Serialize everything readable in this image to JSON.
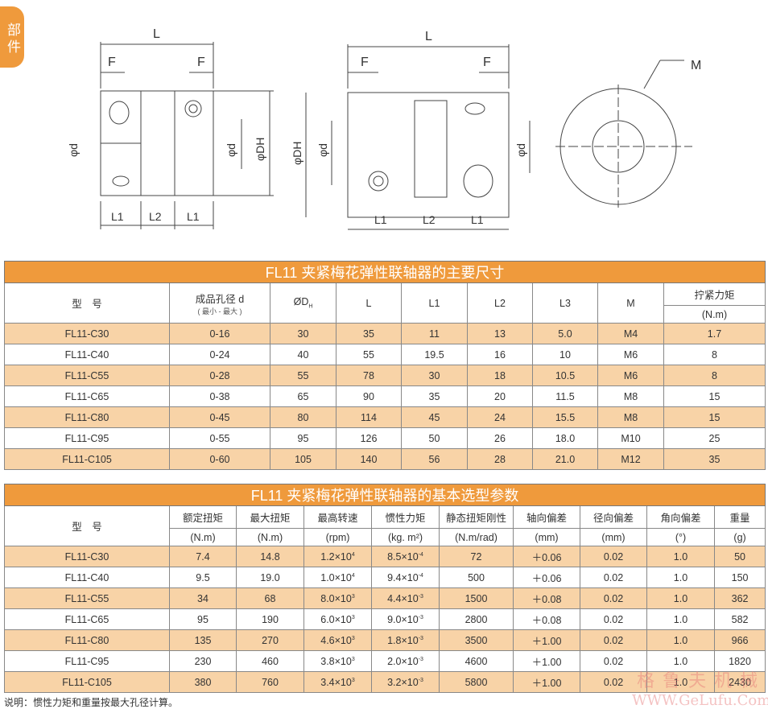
{
  "side_tab": "部件",
  "drawing": {
    "L": "L",
    "F": "F",
    "d": "φd",
    "DH": "φDH",
    "L1": "L1",
    "L2": "L2",
    "M": "M"
  },
  "table1": {
    "title": "FL11 夹紧梅花弹性联轴器的主要尺寸",
    "headers": [
      "型　号",
      "成品孔径 d",
      "ØD",
      "L",
      "L1",
      "L2",
      "L3",
      "M",
      "拧紧力矩"
    ],
    "sub_d": "( 最小 - 最大 )",
    "dh_sub": "H",
    "torque_unit": "(N.m)",
    "rows": [
      [
        "FL11-C30",
        "0-16",
        "30",
        "35",
        "11",
        "13",
        "5.0",
        "M4",
        "1.7"
      ],
      [
        "FL11-C40",
        "0-24",
        "40",
        "55",
        "19.5",
        "16",
        "10",
        "M6",
        "8"
      ],
      [
        "FL11-C55",
        "0-28",
        "55",
        "78",
        "30",
        "18",
        "10.5",
        "M6",
        "8"
      ],
      [
        "FL11-C65",
        "0-38",
        "65",
        "90",
        "35",
        "20",
        "11.5",
        "M8",
        "15"
      ],
      [
        "FL11-C80",
        "0-45",
        "80",
        "114",
        "45",
        "24",
        "15.5",
        "M8",
        "15"
      ],
      [
        "FL11-C95",
        "0-55",
        "95",
        "126",
        "50",
        "26",
        "18.0",
        "M10",
        "25"
      ],
      [
        "FL11-C105",
        "0-60",
        "105",
        "140",
        "56",
        "28",
        "21.0",
        "M12",
        "35"
      ]
    ]
  },
  "table2": {
    "title": "FL11 夹紧梅花弹性联轴器的基本选型参数",
    "headers": [
      "型　号",
      "额定扭矩",
      "最大扭矩",
      "最高转速",
      "惯性力矩",
      "静态扭矩刚性",
      "轴向偏差",
      "径向偏差",
      "角向偏差",
      "重量"
    ],
    "units": [
      "(N.m)",
      "(N.m)",
      "(rpm)",
      "(kg. m²)",
      "(N.m/rad)",
      "(mm)",
      "(mm)",
      "(°)",
      "(g)"
    ],
    "rows": [
      [
        "FL11-C30",
        "7.4",
        "14.8",
        [
          "1.2×10",
          "4"
        ],
        [
          "8.5×10",
          "-4"
        ],
        "72",
        "＋0.06",
        "0.02",
        "1.0",
        "50"
      ],
      [
        "FL11-C40",
        "9.5",
        "19.0",
        [
          "1.0×10",
          "4"
        ],
        [
          "9.4×10",
          "-4"
        ],
        "500",
        "＋0.06",
        "0.02",
        "1.0",
        "150"
      ],
      [
        "FL11-C55",
        "34",
        "68",
        [
          "8.0×10",
          "3"
        ],
        [
          "4.4×10",
          "-3"
        ],
        "1500",
        "＋0.08",
        "0.02",
        "1.0",
        "362"
      ],
      [
        "FL11-C65",
        "95",
        "190",
        [
          "6.0×10",
          "3"
        ],
        [
          "9.0×10",
          "-3"
        ],
        "2800",
        "＋0.08",
        "0.02",
        "1.0",
        "582"
      ],
      [
        "FL11-C80",
        "135",
        "270",
        [
          "4.6×10",
          "3"
        ],
        [
          "1.8×10",
          "-3"
        ],
        "3500",
        "＋1.00",
        "0.02",
        "1.0",
        "966"
      ],
      [
        "FL11-C95",
        "230",
        "460",
        [
          "3.8×10",
          "3"
        ],
        [
          "2.0×10",
          "-3"
        ],
        "4600",
        "＋1.00",
        "0.02",
        "1.0",
        "1820"
      ],
      [
        "FL11-C105",
        "380",
        "760",
        [
          "3.4×10",
          "3"
        ],
        [
          "3.2×10",
          "-3"
        ],
        "5800",
        "＋1.00",
        "0.02",
        "1.0",
        "2430"
      ]
    ]
  },
  "note": "说明：惯性力矩和重量按最大孔径计算。",
  "watermark": {
    "cn": "格鲁夫机械",
    "url": "WWW.GeLufu.Com"
  }
}
